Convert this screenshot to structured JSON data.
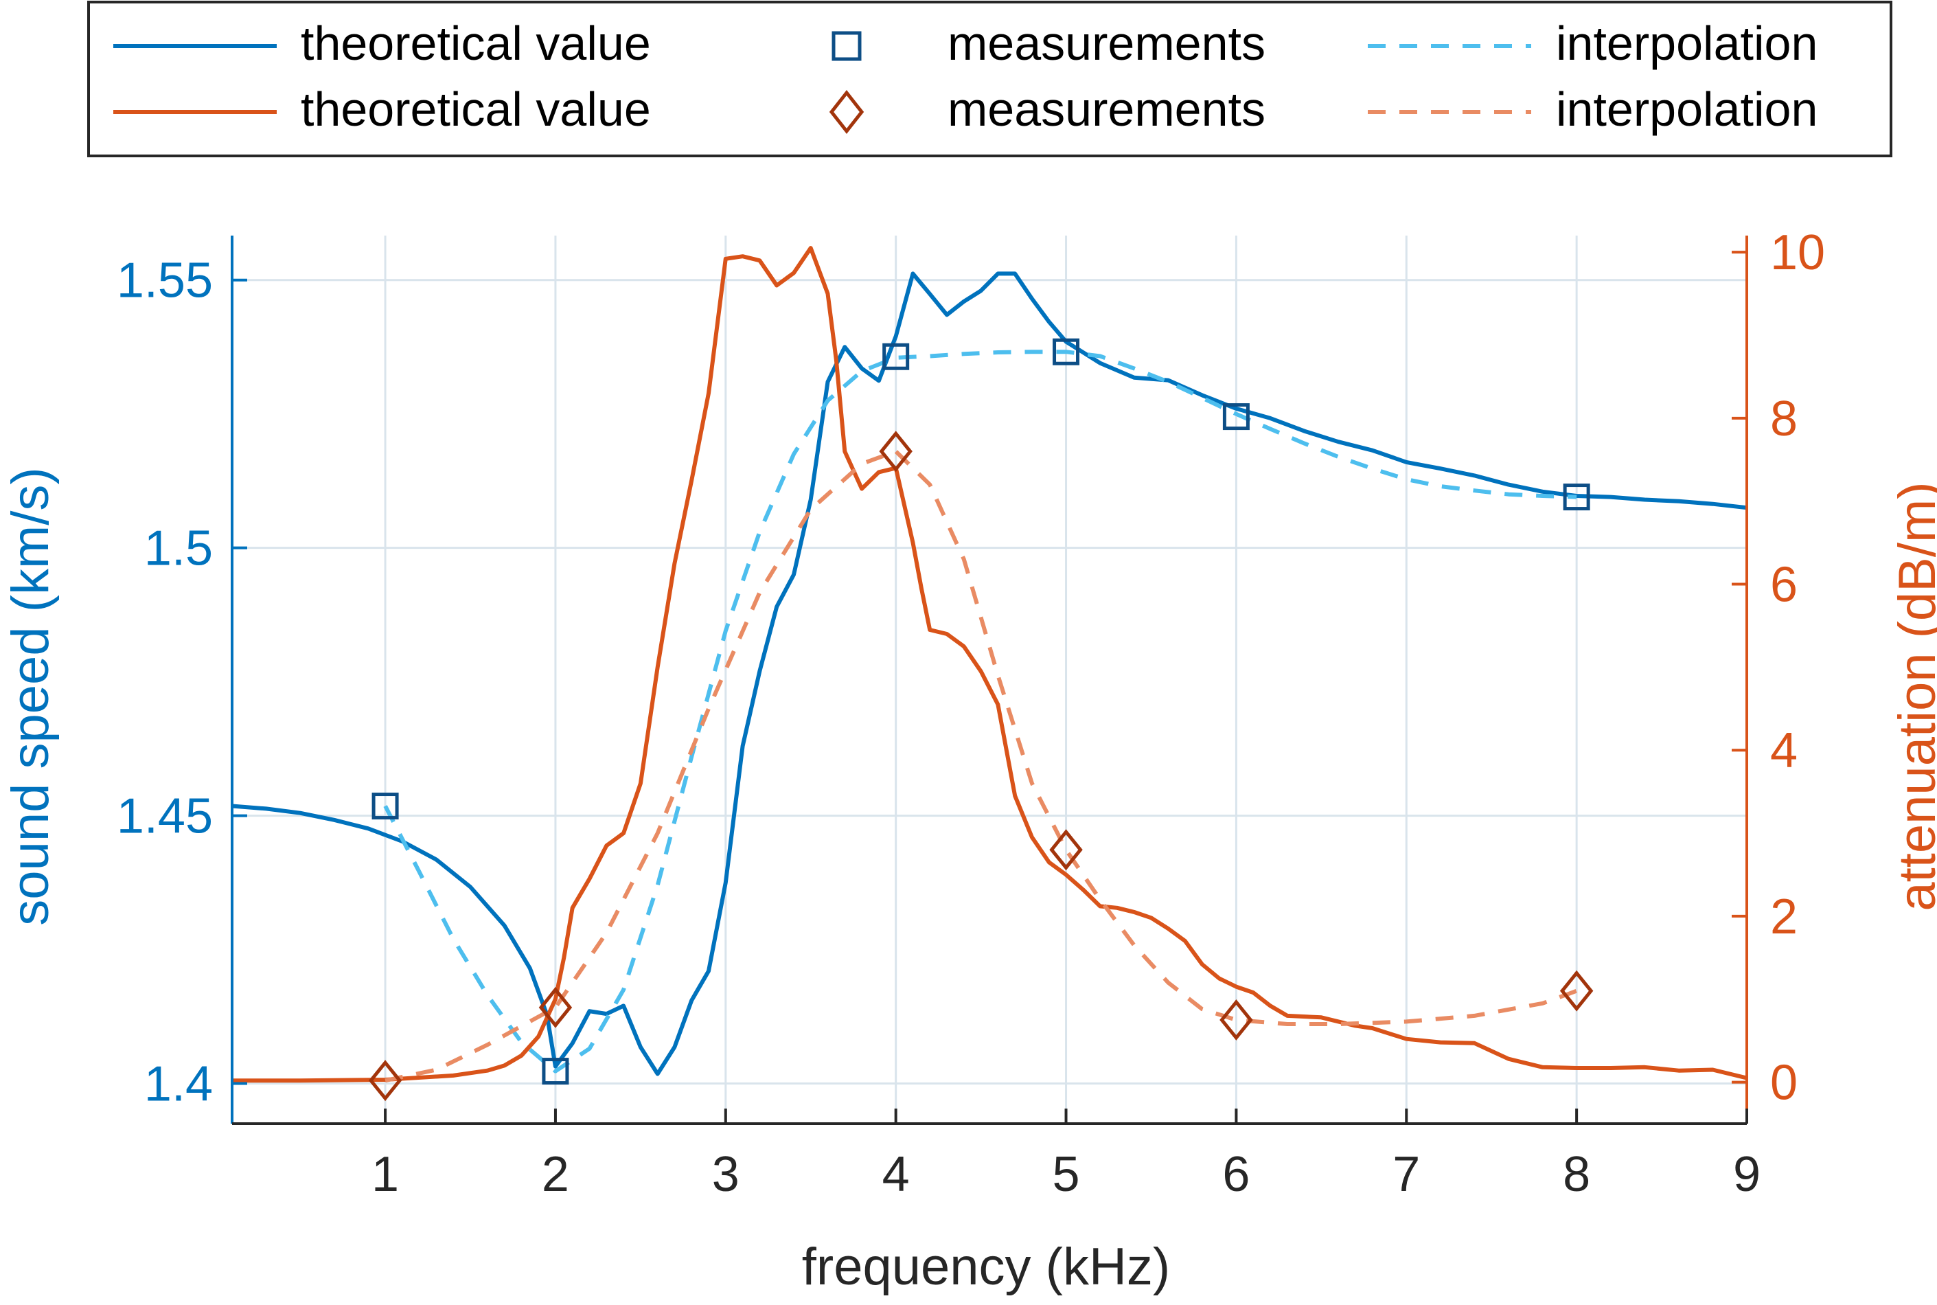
{
  "colors": {
    "blue": "#0072BD",
    "orange": "#D95319",
    "blue_interp": "#4DBEEE",
    "orange_interp": "#E98B63",
    "blue_marker": "#0D4E86",
    "orange_marker": "#A2340B",
    "grid": "#D9E4EC",
    "axis_text": "#262626"
  },
  "legend": {
    "entries": [
      {
        "label": "theoretical value",
        "series": "blue",
        "style": "solid"
      },
      {
        "label": "measurements",
        "series": "blue",
        "style": "square"
      },
      {
        "label": "interpolation",
        "series": "blue",
        "style": "dashed"
      },
      {
        "label": "theoretical value",
        "series": "orange",
        "style": "solid"
      },
      {
        "label": "measurements",
        "series": "orange",
        "style": "diamond"
      },
      {
        "label": "interpolation",
        "series": "orange",
        "style": "dashed"
      }
    ]
  },
  "chart_data": {
    "type": "line",
    "title": "",
    "xlabel": "frequency (kHz)",
    "ylabel_left": "sound speed (km/s)",
    "ylabel_right": "attenuation (dB/m)",
    "xlim": [
      0.1,
      9
    ],
    "ylim_left": [
      1.3925,
      1.5583
    ],
    "ylim_right": [
      -0.5,
      10.2
    ],
    "xticks": [
      1,
      2,
      3,
      4,
      5,
      6,
      7,
      8,
      9
    ],
    "xticklabels": [
      "1",
      "2",
      "3",
      "4",
      "5",
      "6",
      "7",
      "8",
      "9"
    ],
    "yticks_left": [
      1.4,
      1.45,
      1.5,
      1.55
    ],
    "yticklabels_left": [
      "1.4",
      "1.45",
      "1.5",
      "1.55"
    ],
    "yticks_right": [
      0,
      2,
      4,
      6,
      8,
      10
    ],
    "yticklabels_right": [
      "0",
      "2",
      "4",
      "6",
      "8",
      "10"
    ],
    "grid": true,
    "legend_position": "top-outside",
    "series": [
      {
        "name": "theoretical value",
        "axis": "left",
        "kind": "line",
        "color": "blue",
        "x": [
          0.1,
          0.3,
          0.5,
          0.7,
          0.9,
          1.1,
          1.3,
          1.5,
          1.7,
          1.85,
          1.95,
          2.0,
          2.1,
          2.2,
          2.3,
          2.4,
          2.5,
          2.6,
          2.7,
          2.8,
          2.9,
          3.0,
          3.1,
          3.2,
          3.3,
          3.4,
          3.5,
          3.6,
          3.7,
          3.8,
          3.9,
          4.0,
          4.1,
          4.2,
          4.3,
          4.4,
          4.5,
          4.6,
          4.7,
          4.8,
          4.9,
          5.0,
          5.2,
          5.4,
          5.6,
          5.8,
          6.0,
          6.2,
          6.4,
          6.6,
          6.8,
          7.0,
          7.2,
          7.4,
          7.6,
          7.8,
          8.0,
          8.2,
          8.4,
          8.6,
          8.8,
          9.0
        ],
        "y": [
          1.4518,
          1.4513,
          1.4505,
          1.4492,
          1.4476,
          1.4452,
          1.4418,
          1.4367,
          1.4295,
          1.4215,
          1.4128,
          1.4032,
          1.4075,
          1.4135,
          1.413,
          1.4145,
          1.4068,
          1.4018,
          1.4068,
          1.4155,
          1.421,
          1.4375,
          1.463,
          1.477,
          1.489,
          1.495,
          1.509,
          1.531,
          1.5375,
          1.5335,
          1.5312,
          1.5395,
          1.5512,
          1.5474,
          1.5435,
          1.546,
          1.548,
          1.5512,
          1.5512,
          1.5465,
          1.5422,
          1.5385,
          1.5345,
          1.5318,
          1.5313,
          1.5285,
          1.526,
          1.5242,
          1.5218,
          1.5198,
          1.5182,
          1.516,
          1.5148,
          1.5135,
          1.5118,
          1.5105,
          1.5097,
          1.5095,
          1.509,
          1.5087,
          1.5082,
          1.5075
        ]
      },
      {
        "name": "measurements",
        "axis": "left",
        "kind": "square",
        "color": "blue_marker",
        "x": [
          1,
          2,
          4,
          5,
          6,
          8
        ],
        "y": [
          1.4518,
          1.4023,
          1.5357,
          1.5366,
          1.5245,
          1.5095
        ]
      },
      {
        "name": "interpolation",
        "axis": "left",
        "kind": "dashed",
        "color": "blue_interp",
        "x": [
          1.0,
          1.2,
          1.4,
          1.6,
          1.8,
          2.0,
          2.2,
          2.4,
          2.6,
          2.8,
          3.0,
          3.2,
          3.4,
          3.6,
          3.8,
          4.0,
          4.2,
          4.4,
          4.6,
          4.8,
          5.0,
          5.2,
          5.4,
          5.6,
          5.8,
          6.0,
          6.2,
          6.4,
          6.6,
          6.8,
          7.0,
          7.2,
          7.4,
          7.6,
          7.8,
          8.0
        ],
        "y": [
          1.4518,
          1.4395,
          1.427,
          1.4165,
          1.4077,
          1.4023,
          1.4065,
          1.4175,
          1.437,
          1.461,
          1.4845,
          1.503,
          1.5175,
          1.5275,
          1.533,
          1.5355,
          1.5358,
          1.5362,
          1.5365,
          1.5366,
          1.5366,
          1.5358,
          1.5335,
          1.531,
          1.528,
          1.525,
          1.5222,
          1.5195,
          1.517,
          1.5148,
          1.5128,
          1.5115,
          1.5107,
          1.51,
          1.5097,
          1.5095
        ]
      },
      {
        "name": "theoretical value",
        "axis": "right",
        "kind": "line",
        "color": "orange",
        "x": [
          0.1,
          0.5,
          1.0,
          1.4,
          1.6,
          1.7,
          1.8,
          1.9,
          2.0,
          2.05,
          2.1,
          2.2,
          2.3,
          2.4,
          2.5,
          2.6,
          2.7,
          2.8,
          2.9,
          3.0,
          3.1,
          3.2,
          3.3,
          3.4,
          3.5,
          3.6,
          3.65,
          3.7,
          3.8,
          3.9,
          4.0,
          4.1,
          4.15,
          4.2,
          4.3,
          4.4,
          4.5,
          4.6,
          4.7,
          4.8,
          4.9,
          5.0,
          5.1,
          5.2,
          5.3,
          5.4,
          5.5,
          5.6,
          5.7,
          5.8,
          5.9,
          6.0,
          6.1,
          6.2,
          6.3,
          6.5,
          6.7,
          6.8,
          7.0,
          7.2,
          7.4,
          7.6,
          7.8,
          8.0,
          8.2,
          8.4,
          8.6,
          8.8,
          9.0
        ],
        "y": [
          0.02,
          0.02,
          0.03,
          0.08,
          0.14,
          0.2,
          0.32,
          0.55,
          1.0,
          1.5,
          2.1,
          2.45,
          2.85,
          3.0,
          3.6,
          5.0,
          6.25,
          7.25,
          8.3,
          9.92,
          9.95,
          9.9,
          9.6,
          9.75,
          10.05,
          9.5,
          8.7,
          7.6,
          7.15,
          7.35,
          7.4,
          6.5,
          5.95,
          5.45,
          5.4,
          5.25,
          4.95,
          4.55,
          3.45,
          2.95,
          2.65,
          2.5,
          2.32,
          2.12,
          2.1,
          2.05,
          1.98,
          1.85,
          1.7,
          1.42,
          1.25,
          1.15,
          1.08,
          0.92,
          0.8,
          0.78,
          0.68,
          0.65,
          0.52,
          0.48,
          0.47,
          0.28,
          0.18,
          0.17,
          0.17,
          0.18,
          0.14,
          0.15,
          0.05
        ]
      },
      {
        "name": "measurements",
        "axis": "right",
        "kind": "diamond",
        "color": "orange_marker",
        "x": [
          1,
          2,
          4,
          5,
          6,
          8
        ],
        "y": [
          0.02,
          0.9,
          7.6,
          2.8,
          0.75,
          1.1
        ]
      },
      {
        "name": "interpolation",
        "axis": "right",
        "kind": "dashed",
        "color": "orange_interp",
        "x": [
          1.0,
          1.3,
          1.6,
          2.0,
          2.3,
          2.6,
          2.9,
          3.2,
          3.5,
          3.8,
          4.0,
          4.2,
          4.4,
          4.6,
          4.8,
          5.0,
          5.2,
          5.4,
          5.6,
          5.8,
          6.0,
          6.3,
          6.6,
          7.0,
          7.4,
          7.8,
          8.0
        ],
        "y": [
          0.02,
          0.15,
          0.45,
          0.9,
          1.8,
          3.0,
          4.5,
          5.9,
          6.9,
          7.45,
          7.6,
          7.2,
          6.3,
          4.9,
          3.6,
          2.8,
          2.2,
          1.65,
          1.2,
          0.88,
          0.75,
          0.7,
          0.7,
          0.73,
          0.8,
          0.95,
          1.1
        ]
      }
    ]
  }
}
